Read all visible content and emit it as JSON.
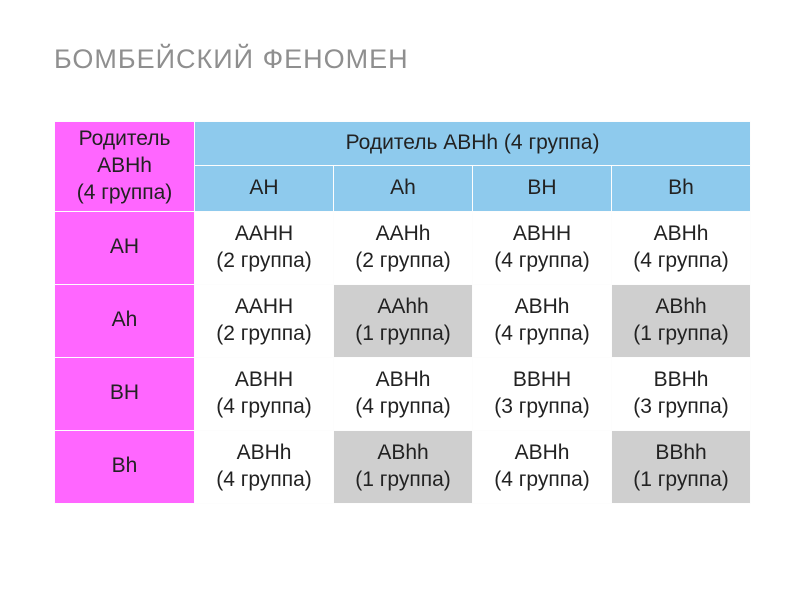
{
  "title": "БОМБЕЙСКИЙ ФЕНОМЕН",
  "table": {
    "rowParent": "Родитель АВНh\n(4 группа)",
    "colParent": "Родитель АВНh (4 группа)",
    "colGametes": [
      "АН",
      "Аh",
      "ВН",
      "Вh"
    ],
    "rowGametes": [
      "АН",
      "Аh",
      "ВН",
      "Вh"
    ],
    "cells": [
      [
        {
          "g": "ААНН",
          "gr": "(2 группа)",
          "hl": false
        },
        {
          "g": "ААНh",
          "gr": "(2 группа)",
          "hl": false
        },
        {
          "g": "АВНН",
          "gr": "(4 группа)",
          "hl": false
        },
        {
          "g": "АВНh",
          "gr": "(4 группа)",
          "hl": false
        }
      ],
      [
        {
          "g": "ААНН",
          "gr": "(2 группа)",
          "hl": false
        },
        {
          "g": "ААhh",
          "gr": "(1 группа)",
          "hl": true
        },
        {
          "g": "АВНh",
          "gr": "(4 группа)",
          "hl": false
        },
        {
          "g": "АВhh",
          "gr": "(1 группа)",
          "hl": true
        }
      ],
      [
        {
          "g": "АВНН",
          "gr": "(4 группа)",
          "hl": false
        },
        {
          "g": "АВНh",
          "gr": "(4 группа)",
          "hl": false
        },
        {
          "g": "ВВНН",
          "gr": "(3 группа)",
          "hl": false
        },
        {
          "g": "ВВНh",
          "gr": "(3 группа)",
          "hl": false
        }
      ],
      [
        {
          "g": "АВНh",
          "gr": "(4 группа)",
          "hl": false
        },
        {
          "g": "АВhh",
          "gr": "(1 группа)",
          "hl": true
        },
        {
          "g": "АВНh",
          "gr": "(4 группа)",
          "hl": false
        },
        {
          "g": "ВВhh",
          "gr": "(1 группа)",
          "hl": true
        }
      ]
    ],
    "colors": {
      "pink": "#ff66ff",
      "blue": "#8ecaed",
      "white": "#ffffff",
      "grey": "#cfcfcf",
      "title": "#8f8f8f"
    }
  }
}
